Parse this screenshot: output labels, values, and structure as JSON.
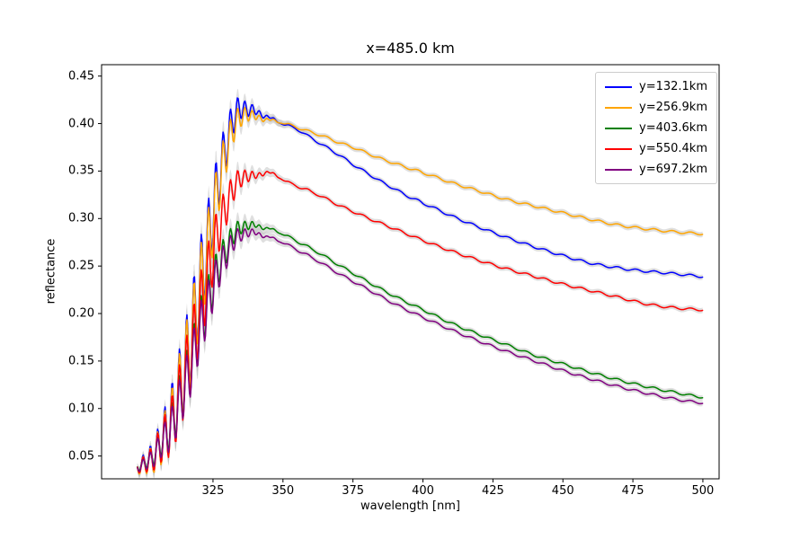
{
  "figure": {
    "background": "#ffffff"
  },
  "chart_data": {
    "type": "line",
    "title": "x=485.0 km",
    "xlabel": "wavelength [nm]",
    "ylabel": "reflectance",
    "xlim": [
      285.2,
      505.8
    ],
    "ylim": [
      0.026,
      0.462
    ],
    "x_ticks": [
      325,
      350,
      375,
      400,
      425,
      450,
      475,
      500
    ],
    "y_ticks": [
      0.05,
      0.1,
      0.15,
      0.2,
      0.25,
      0.3,
      0.35,
      0.4,
      0.45
    ],
    "grid": false,
    "legend_position": "upper right",
    "band_color": "#b9b9b9",
    "band_opacity": 0.45,
    "oscillation": {
      "period": 2.6,
      "center": 318,
      "sigma": 10,
      "phase_ref": 300.0
    },
    "band": {
      "base": 0.0028,
      "peak_extra": 0.011,
      "center": 322,
      "sigma": 12
    },
    "texture": {
      "amplitude": 0.0012,
      "period": 6.5
    },
    "series": [
      {
        "name": "y=132.1km",
        "color": "#0000ff",
        "dip_depth": 0.095,
        "anchors": [
          [
            298,
            0.045
          ],
          [
            302,
            0.058
          ],
          [
            306,
            0.085
          ],
          [
            310,
            0.125
          ],
          [
            315,
            0.19
          ],
          [
            320,
            0.27
          ],
          [
            325,
            0.345
          ],
          [
            330,
            0.405
          ],
          [
            334,
            0.427
          ],
          [
            338,
            0.421
          ],
          [
            342,
            0.413
          ],
          [
            346,
            0.406
          ],
          [
            350,
            0.4
          ],
          [
            355,
            0.394
          ],
          [
            360,
            0.385
          ],
          [
            365,
            0.376
          ],
          [
            370,
            0.367
          ],
          [
            375,
            0.357
          ],
          [
            380,
            0.348
          ],
          [
            385,
            0.339
          ],
          [
            390,
            0.331
          ],
          [
            395,
            0.323
          ],
          [
            400,
            0.316
          ],
          [
            410,
            0.303
          ],
          [
            420,
            0.291
          ],
          [
            430,
            0.28
          ],
          [
            440,
            0.27
          ],
          [
            450,
            0.261
          ],
          [
            460,
            0.253
          ],
          [
            470,
            0.248
          ],
          [
            478,
            0.245
          ],
          [
            486,
            0.243
          ],
          [
            493,
            0.241
          ],
          [
            500,
            0.239
          ]
        ]
      },
      {
        "name": "y=256.9km",
        "color": "#ffa500",
        "dip_depth": 0.09,
        "anchors": [
          [
            298,
            0.044
          ],
          [
            302,
            0.056
          ],
          [
            306,
            0.082
          ],
          [
            310,
            0.12
          ],
          [
            315,
            0.185
          ],
          [
            320,
            0.262
          ],
          [
            325,
            0.335
          ],
          [
            330,
            0.396
          ],
          [
            335,
            0.418
          ],
          [
            340,
            0.411
          ],
          [
            345,
            0.405
          ],
          [
            350,
            0.401
          ],
          [
            355,
            0.396
          ],
          [
            360,
            0.391
          ],
          [
            365,
            0.386
          ],
          [
            370,
            0.38
          ],
          [
            375,
            0.375
          ],
          [
            380,
            0.369
          ],
          [
            385,
            0.363
          ],
          [
            390,
            0.358
          ],
          [
            395,
            0.353
          ],
          [
            400,
            0.348
          ],
          [
            410,
            0.338
          ],
          [
            420,
            0.329
          ],
          [
            430,
            0.32
          ],
          [
            440,
            0.313
          ],
          [
            450,
            0.306
          ],
          [
            460,
            0.299
          ],
          [
            470,
            0.293
          ],
          [
            480,
            0.289
          ],
          [
            490,
            0.286
          ],
          [
            500,
            0.284
          ]
        ]
      },
      {
        "name": "y=403.6km",
        "color": "#008000",
        "dip_depth": 0.06,
        "anchors": [
          [
            298,
            0.043
          ],
          [
            302,
            0.054
          ],
          [
            306,
            0.077
          ],
          [
            310,
            0.105
          ],
          [
            315,
            0.155
          ],
          [
            320,
            0.21
          ],
          [
            325,
            0.255
          ],
          [
            330,
            0.285
          ],
          [
            335,
            0.298
          ],
          [
            340,
            0.295
          ],
          [
            345,
            0.29
          ],
          [
            350,
            0.284
          ],
          [
            355,
            0.276
          ],
          [
            360,
            0.268
          ],
          [
            370,
            0.251
          ],
          [
            380,
            0.234
          ],
          [
            390,
            0.218
          ],
          [
            400,
            0.204
          ],
          [
            410,
            0.19
          ],
          [
            420,
            0.178
          ],
          [
            430,
            0.167
          ],
          [
            440,
            0.156
          ],
          [
            450,
            0.147
          ],
          [
            460,
            0.138
          ],
          [
            470,
            0.13
          ],
          [
            480,
            0.123
          ],
          [
            490,
            0.117
          ],
          [
            500,
            0.112
          ]
        ]
      },
      {
        "name": "y=550.4km",
        "color": "#ff0000",
        "dip_depth": 0.08,
        "anchors": [
          [
            298,
            0.044
          ],
          [
            302,
            0.055
          ],
          [
            306,
            0.08
          ],
          [
            310,
            0.112
          ],
          [
            315,
            0.17
          ],
          [
            320,
            0.235
          ],
          [
            325,
            0.295
          ],
          [
            330,
            0.335
          ],
          [
            335,
            0.352
          ],
          [
            340,
            0.348
          ],
          [
            344,
            0.35
          ],
          [
            348,
            0.345
          ],
          [
            352,
            0.338
          ],
          [
            356,
            0.333
          ],
          [
            360,
            0.328
          ],
          [
            370,
            0.314
          ],
          [
            380,
            0.301
          ],
          [
            390,
            0.289
          ],
          [
            400,
            0.277
          ],
          [
            410,
            0.266
          ],
          [
            420,
            0.256
          ],
          [
            430,
            0.247
          ],
          [
            440,
            0.239
          ],
          [
            450,
            0.231
          ],
          [
            460,
            0.224
          ],
          [
            470,
            0.217
          ],
          [
            480,
            0.21
          ],
          [
            490,
            0.206
          ],
          [
            500,
            0.204
          ]
        ]
      },
      {
        "name": "y=697.2km",
        "color": "#800080",
        "dip_depth": 0.058,
        "anchors": [
          [
            298,
            0.042
          ],
          [
            302,
            0.052
          ],
          [
            306,
            0.074
          ],
          [
            310,
            0.101
          ],
          [
            315,
            0.15
          ],
          [
            320,
            0.205
          ],
          [
            325,
            0.249
          ],
          [
            330,
            0.278
          ],
          [
            335,
            0.29
          ],
          [
            340,
            0.287
          ],
          [
            345,
            0.281
          ],
          [
            350,
            0.275
          ],
          [
            355,
            0.267
          ],
          [
            360,
            0.259
          ],
          [
            370,
            0.242
          ],
          [
            380,
            0.226
          ],
          [
            390,
            0.21
          ],
          [
            400,
            0.196
          ],
          [
            410,
            0.183
          ],
          [
            420,
            0.171
          ],
          [
            430,
            0.16
          ],
          [
            440,
            0.15
          ],
          [
            450,
            0.14
          ],
          [
            460,
            0.131
          ],
          [
            470,
            0.123
          ],
          [
            480,
            0.116
          ],
          [
            490,
            0.11
          ],
          [
            500,
            0.106
          ]
        ]
      }
    ]
  }
}
